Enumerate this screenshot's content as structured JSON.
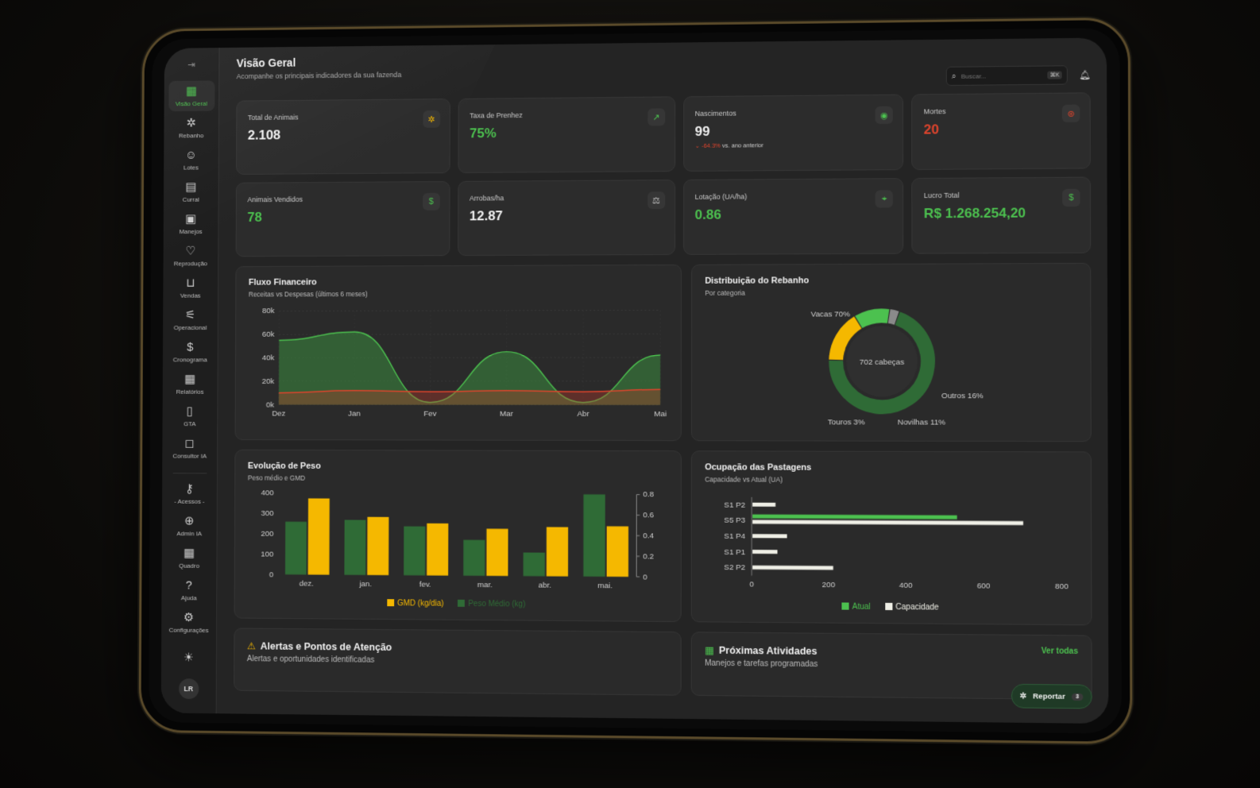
{
  "header": {
    "title": "Visão Geral",
    "subtitle": "Acompanhe os principais indicadores da sua fazenda",
    "search_placeholder": "Buscar...",
    "search_shortcut": "⌘K"
  },
  "sidebar": {
    "items": [
      {
        "label": "Visão Geral",
        "icon": "grid-icon"
      },
      {
        "label": "Rebanho",
        "icon": "bug-icon"
      },
      {
        "label": "Lotes",
        "icon": "users-icon"
      },
      {
        "label": "Curral",
        "icon": "building-icon"
      },
      {
        "label": "Manejos",
        "icon": "clipboard-icon"
      },
      {
        "label": "Reprodução",
        "icon": "heart-icon"
      },
      {
        "label": "Vendas",
        "icon": "cart-icon"
      },
      {
        "label": "Operacional",
        "icon": "sliders-icon"
      },
      {
        "label": "Cronograma",
        "icon": "dollar-icon"
      },
      {
        "label": "Relatórios",
        "icon": "calendar-icon"
      },
      {
        "label": "GTA",
        "icon": "file-icon"
      },
      {
        "label": "Consultor IA",
        "icon": "chat-icon"
      }
    ],
    "secondary": [
      {
        "label": "- Acessos -",
        "icon": "key-icon"
      },
      {
        "label": "Admin IA",
        "icon": "globe-icon"
      },
      {
        "label": "Quadro",
        "icon": "grid-icon"
      },
      {
        "label": "Ajuda",
        "icon": "help-icon"
      },
      {
        "label": "Configurações",
        "icon": "gear-icon"
      }
    ],
    "user_initials": "LR"
  },
  "kpis": [
    {
      "label": "Total de Animais",
      "value": "2.108",
      "color": "#f0f0f0",
      "icon": "bug-icon",
      "icon_color": "#f5b800"
    },
    {
      "label": "Taxa de Prenhez",
      "value": "75%",
      "color": "#4cc14f",
      "icon": "trend-up-icon",
      "icon_color": "#4cc14f"
    },
    {
      "label": "Nascimentos",
      "value": "99",
      "color": "#f0f0f0",
      "icon": "baby-icon",
      "icon_color": "#4cc14f",
      "trend_value": "-64.3%",
      "trend_text": "vs. ano anterior"
    },
    {
      "label": "Mortes",
      "value": "20",
      "color": "#e0442c",
      "icon": "alert-icon",
      "icon_color": "#e0442c"
    },
    {
      "label": "Animais Vendidos",
      "value": "78",
      "color": "#4cc14f",
      "icon": "dollar-icon",
      "icon_color": "#4cc14f"
    },
    {
      "label": "Arrobas/ha",
      "value": "12.87",
      "color": "#f0f0f0",
      "icon": "scale-icon",
      "icon_color": "#cfcfcf"
    },
    {
      "label": "Lotação (UA/ha)",
      "value": "0.86",
      "color": "#4cc14f",
      "icon": "pin-icon",
      "icon_color": "#4cc14f"
    },
    {
      "label": "Lucro Total",
      "value": "R$ 1.268.254,20",
      "color": "#4cc14f",
      "icon": "dollar-icon",
      "icon_color": "#4cc14f"
    }
  ],
  "fluxo": {
    "title": "Fluxo Financeiro",
    "subtitle": "Receitas vs Despesas (últimos 6 meses)"
  },
  "distribuicao": {
    "title": "Distribuição do Rebanho",
    "subtitle": "Por categoria",
    "center_label": "702 cabeças"
  },
  "peso": {
    "title": "Evolução de Peso",
    "subtitle": "Peso médio e GMD"
  },
  "pastagens": {
    "title": "Ocupação das Pastagens",
    "subtitle": "Capacidade vs Atual (UA)"
  },
  "alertas": {
    "title": "Alertas e Pontos de Atenção",
    "subtitle": "Alertas e oportunidades identificadas"
  },
  "atividades": {
    "title": "Próximas Atividades",
    "subtitle": "Manejos e tarefas programadas",
    "link": "Ver todas"
  },
  "report_button": {
    "label": "Reportar",
    "count": "3"
  },
  "chart_data": [
    {
      "type": "area",
      "title": "Fluxo Financeiro",
      "categories": [
        "Dez",
        "Jan",
        "Fev",
        "Mar",
        "Abr",
        "Mai"
      ],
      "yticks": [
        "0k",
        "20k",
        "40k",
        "60k",
        "80k"
      ],
      "ylim": [
        0,
        80000
      ],
      "series": [
        {
          "color": "#3a8a3e",
          "values": [
            55000,
            62000,
            2000,
            45000,
            2000,
            42000
          ]
        },
        {
          "color": "#c0392b",
          "values": [
            10000,
            12000,
            11000,
            12000,
            11000,
            13000
          ]
        }
      ]
    },
    {
      "type": "pie",
      "title": "Distribuição do Rebanho",
      "slices": [
        {
          "label": "Vacas 70%",
          "value": 70,
          "color": "#2f6b36"
        },
        {
          "label": "Outros 16%",
          "value": 16,
          "color": "#f5b800"
        },
        {
          "label": "Novilhas 11%",
          "value": 11,
          "color": "#4cc14f"
        },
        {
          "label": "Touros 3%",
          "value": 3,
          "color": "#8a8a8a"
        }
      ]
    },
    {
      "type": "bar",
      "title": "Evolução de Peso",
      "categories": [
        "dez.",
        "jan.",
        "fev.",
        "mar.",
        "abr.",
        "mai."
      ],
      "ylim_left": [
        0,
        400
      ],
      "ylim_right": [
        0,
        0.8
      ],
      "yticks_left": [
        "0",
        "100",
        "200",
        "300",
        "400"
      ],
      "yticks_right": [
        "0",
        "0.2",
        "0.4",
        "0.6",
        "0.8"
      ],
      "series": [
        {
          "name": "Peso Médio (kg)",
          "color": "#2f6b36",
          "axis": "left",
          "values": [
            260,
            270,
            240,
            175,
            115,
            400
          ]
        },
        {
          "name": "GMD (kg/dia)",
          "color": "#f5b800",
          "axis": "right",
          "values": [
            0.75,
            0.57,
            0.51,
            0.46,
            0.48,
            0.49
          ]
        }
      ]
    },
    {
      "type": "bar",
      "orientation": "horizontal",
      "title": "Ocupação das Pastagens",
      "categories": [
        "S1 P2",
        "S5 P3",
        "S1 P4",
        "S1 P1",
        "S2 P2"
      ],
      "xlim": [
        0,
        800
      ],
      "xticks": [
        "0",
        "200",
        "400",
        "600",
        "800"
      ],
      "series": [
        {
          "name": "Atual",
          "color": "#4cc14f",
          "values": [
            0,
            530,
            0,
            0,
            0
          ]
        },
        {
          "name": "Capacidade",
          "color": "#efefe6",
          "values": [
            60,
            700,
            90,
            65,
            210
          ]
        }
      ]
    }
  ]
}
